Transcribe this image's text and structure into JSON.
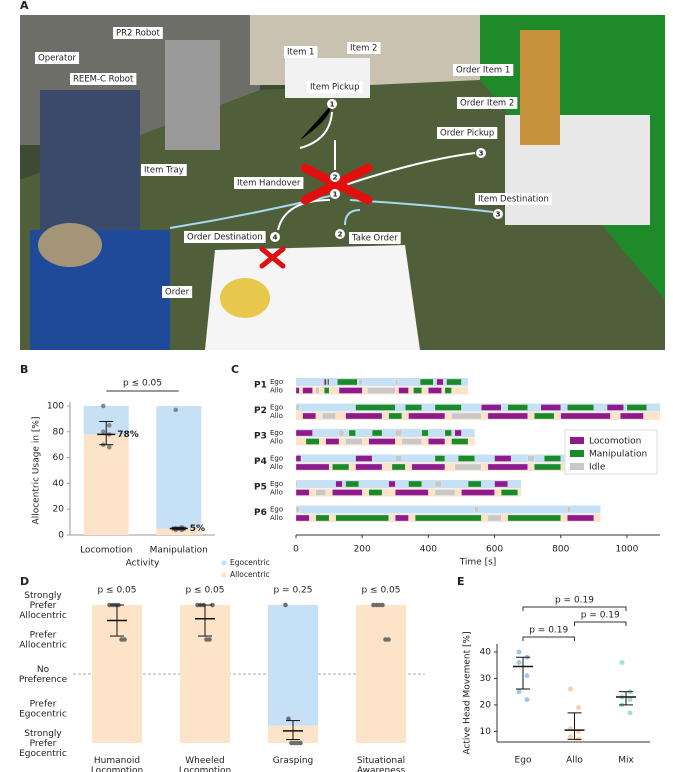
{
  "photo": {
    "panel": "A",
    "labels": [
      "Operator",
      "PR2 Robot",
      "REEM-C Robot",
      "Item Tray",
      "Item 1",
      "Item 2",
      "Item Pickup",
      "Item Handover",
      "Order Destination",
      "Take Order",
      "Order",
      "Order Item 1",
      "Order Item 2",
      "Order Pickup",
      "Item Destination"
    ],
    "steps": [
      1,
      2,
      1,
      3,
      4,
      2,
      3
    ]
  },
  "chart_data": [
    {
      "type": "stacked_bar",
      "panel": "B",
      "annotation": "p ≤ 0.05",
      "ylabel": "Allocentric Usage in [%]",
      "xlabel": "Activity",
      "categories": [
        "Locomotion",
        "Manipulation"
      ],
      "series": [
        {
          "name": "Allocentric",
          "color": "#fde3c8",
          "values": [
            78,
            5
          ],
          "value_labels": [
            "78%",
            "5%"
          ]
        },
        {
          "name": "Egocentric",
          "color": "#c6e0f5",
          "values": [
            22,
            95
          ]
        }
      ],
      "points": [
        [
          100,
          85,
          80,
          78,
          70,
          68
        ],
        [
          97,
          6,
          5,
          5,
          4,
          4
        ]
      ],
      "ci": [
        [
          70,
          88
        ],
        [
          4,
          6
        ]
      ],
      "ylim": [
        0,
        100
      ],
      "yticks": [
        0,
        20,
        40,
        60,
        80,
        100
      ]
    },
    {
      "type": "timeline",
      "panel": "C",
      "xlabel": "Time [s]",
      "xlim": [
        0,
        1100
      ],
      "xticks": [
        0,
        200,
        400,
        600,
        800,
        1000
      ],
      "modes": [
        {
          "name": "Ego",
          "color": "#c6e0f5"
        },
        {
          "name": "Allo",
          "color": "#fde3c8"
        }
      ],
      "activities": [
        {
          "name": "Locomotion",
          "color": "#8e1a8e"
        },
        {
          "name": "Manipulation",
          "color": "#1a8a2a"
        },
        {
          "name": "Idle",
          "color": "#c8c8c8"
        }
      ],
      "participants": [
        {
          "name": "P1",
          "duration": 520,
          "ego": [
            [
              85,
              92,
              "Locomotion"
            ],
            [
              95,
              100,
              "Manipulation"
            ],
            [
              125,
              185,
              "Manipulation"
            ],
            [
              190,
              200,
              "Idle"
            ],
            [
              300,
              308,
              "Idle"
            ],
            [
              375,
              415,
              "Manipulation"
            ],
            [
              425,
              445,
              "Locomotion"
            ],
            [
              455,
              500,
              "Manipulation"
            ]
          ],
          "allo": [
            [
              0,
              10,
              "Locomotion"
            ],
            [
              20,
              50,
              "Locomotion"
            ],
            [
              60,
              70,
              "Idle"
            ],
            [
              85,
              100,
              "Manipulation"
            ],
            [
              130,
              200,
              "Locomotion"
            ],
            [
              215,
              300,
              "Idle"
            ],
            [
              310,
              340,
              "Locomotion"
            ],
            [
              355,
              380,
              "Manipulation"
            ],
            [
              400,
              440,
              "Locomotion"
            ],
            [
              450,
              470,
              "Manipulation"
            ]
          ]
        },
        {
          "name": "P2",
          "duration": 1100,
          "ego": [
            [
              0,
              10,
              "Idle"
            ],
            [
              180,
              300,
              "Manipulation"
            ],
            [
              330,
              380,
              "Manipulation"
            ],
            [
              420,
              500,
              "Manipulation"
            ],
            [
              560,
              620,
              "Locomotion"
            ],
            [
              640,
              700,
              "Manipulation"
            ],
            [
              740,
              800,
              "Locomotion"
            ],
            [
              820,
              900,
              "Manipulation"
            ],
            [
              940,
              990,
              "Locomotion"
            ],
            [
              1000,
              1060,
              "Manipulation"
            ]
          ],
          "allo": [
            [
              20,
              60,
              "Locomotion"
            ],
            [
              80,
              120,
              "Idle"
            ],
            [
              150,
              260,
              "Locomotion"
            ],
            [
              280,
              320,
              "Manipulation"
            ],
            [
              340,
              450,
              "Locomotion"
            ],
            [
              470,
              560,
              "Idle"
            ],
            [
              580,
              700,
              "Locomotion"
            ],
            [
              720,
              780,
              "Manipulation"
            ],
            [
              800,
              950,
              "Locomotion"
            ],
            [
              980,
              1050,
              "Locomotion"
            ]
          ]
        },
        {
          "name": "P3",
          "duration": 540,
          "ego": [
            [
              0,
              50,
              "Locomotion"
            ],
            [
              130,
              145,
              "Idle"
            ],
            [
              160,
              180,
              "Manipulation"
            ],
            [
              230,
              260,
              "Manipulation"
            ],
            [
              300,
              320,
              "Idle"
            ],
            [
              380,
              400,
              "Manipulation"
            ],
            [
              450,
              470,
              "Manipulation"
            ],
            [
              480,
              500,
              "Locomotion"
            ]
          ],
          "allo": [
            [
              30,
              70,
              "Manipulation"
            ],
            [
              90,
              130,
              "Locomotion"
            ],
            [
              150,
              200,
              "Idle"
            ],
            [
              220,
              300,
              "Locomotion"
            ],
            [
              320,
              380,
              "Idle"
            ],
            [
              400,
              450,
              "Locomotion"
            ],
            [
              470,
              520,
              "Manipulation"
            ]
          ]
        },
        {
          "name": "P4",
          "duration": 820,
          "ego": [
            [
              0,
              15,
              "Locomotion"
            ],
            [
              180,
              230,
              "Locomotion"
            ],
            [
              300,
              320,
              "Idle"
            ],
            [
              420,
              450,
              "Manipulation"
            ],
            [
              490,
              540,
              "Manipulation"
            ],
            [
              600,
              650,
              "Locomotion"
            ],
            [
              700,
              720,
              "Idle"
            ],
            [
              750,
              800,
              "Manipulation"
            ]
          ],
          "allo": [
            [
              0,
              100,
              "Locomotion"
            ],
            [
              110,
              160,
              "Manipulation"
            ],
            [
              180,
              260,
              "Locomotion"
            ],
            [
              290,
              330,
              "Manipulation"
            ],
            [
              350,
              450,
              "Locomotion"
            ],
            [
              480,
              560,
              "Idle"
            ],
            [
              580,
              700,
              "Locomotion"
            ],
            [
              720,
              800,
              "Manipulation"
            ]
          ]
        },
        {
          "name": "P5",
          "duration": 680,
          "ego": [
            [
              0,
              5,
              "Idle"
            ],
            [
              120,
              140,
              "Locomotion"
            ],
            [
              150,
              190,
              "Manipulation"
            ],
            [
              280,
              300,
              "Locomotion"
            ],
            [
              340,
              380,
              "Manipulation"
            ],
            [
              420,
              440,
              "Idle"
            ],
            [
              520,
              560,
              "Manipulation"
            ],
            [
              600,
              640,
              "Locomotion"
            ]
          ],
          "allo": [
            [
              0,
              40,
              "Locomotion"
            ],
            [
              60,
              90,
              "Idle"
            ],
            [
              110,
              200,
              "Locomotion"
            ],
            [
              220,
              260,
              "Manipulation"
            ],
            [
              300,
              400,
              "Locomotion"
            ],
            [
              420,
              480,
              "Idle"
            ],
            [
              500,
              600,
              "Locomotion"
            ],
            [
              620,
              670,
              "Manipulation"
            ]
          ]
        },
        {
          "name": "P6",
          "duration": 920,
          "ego": [
            [
              0,
              10,
              "Idle"
            ],
            [
              540,
              550,
              "Idle"
            ],
            [
              820,
              830,
              "Idle"
            ]
          ],
          "allo": [
            [
              0,
              40,
              "Locomotion"
            ],
            [
              60,
              100,
              "Manipulation"
            ],
            [
              120,
              280,
              "Manipulation"
            ],
            [
              300,
              340,
              "Locomotion"
            ],
            [
              360,
              560,
              "Manipulation"
            ],
            [
              580,
              620,
              "Idle"
            ],
            [
              640,
              800,
              "Manipulation"
            ],
            [
              820,
              900,
              "Locomotion"
            ]
          ]
        }
      ]
    },
    {
      "type": "preference",
      "panel": "D",
      "categories": [
        "Humanoid Locomotion",
        "Wheeled Locomotion",
        "Grasping",
        "Situational Awareness"
      ],
      "annotations": [
        "p ≤ 0.05",
        "p ≤ 0.05",
        "p = 0.25",
        "p ≤ 0.05"
      ],
      "values": [
        2,
        2,
        -1.5,
        2
      ],
      "colors": {
        "Allocentric": "#fde3c8",
        "Egocentric": "#c6e0f5"
      },
      "means": [
        1.55,
        1.6,
        -1.65,
        null
      ],
      "ci": [
        [
          1.1,
          2
        ],
        [
          1.1,
          2
        ],
        [
          -1.9,
          -1.35
        ],
        null
      ],
      "points": [
        [
          2,
          2,
          2,
          2,
          1,
          1
        ],
        [
          2,
          2,
          2,
          1,
          1,
          2
        ],
        [
          2,
          -1.3,
          -2,
          -2,
          -2,
          -2
        ],
        [
          2,
          2,
          2,
          2,
          1,
          1
        ]
      ],
      "ylim": [
        -2,
        2
      ],
      "yticks": [
        {
          "value": -2,
          "label": "Strongly Prefer Egocentric"
        },
        {
          "value": -1,
          "label": "Prefer Egocentric"
        },
        {
          "value": 0,
          "label": "No Preference"
        },
        {
          "value": 1,
          "label": "Prefer Allocentric"
        },
        {
          "value": 2,
          "label": "Strongly Prefer Allocentric"
        }
      ]
    },
    {
      "type": "dot",
      "panel": "E",
      "ylabel": "Active Head Movement [%]",
      "categories": [
        "Ego",
        "Allo",
        "Mix"
      ],
      "colors": [
        "#9ecae8",
        "#fdcfa5",
        "#9fe3d6"
      ],
      "means": [
        34.5,
        10.5,
        23
      ],
      "ci": [
        [
          26,
          38
        ],
        [
          7,
          17
        ],
        [
          20,
          25
        ]
      ],
      "points": [
        [
          40,
          38,
          36,
          31,
          25,
          22
        ],
        [
          26,
          19,
          11,
          10,
          8,
          7
        ],
        [
          36,
          25,
          23,
          22,
          20,
          17
        ]
      ],
      "comparisons": [
        {
          "pair": [
            0,
            1
          ],
          "label": "p = 0.19"
        },
        {
          "pair": [
            1,
            2
          ],
          "label": "p = 0.19"
        },
        {
          "pair": [
            0,
            2
          ],
          "label": "p = 0.19"
        }
      ],
      "ylim": [
        6,
        43
      ],
      "yticks": [
        10,
        20,
        30,
        40
      ]
    }
  ]
}
